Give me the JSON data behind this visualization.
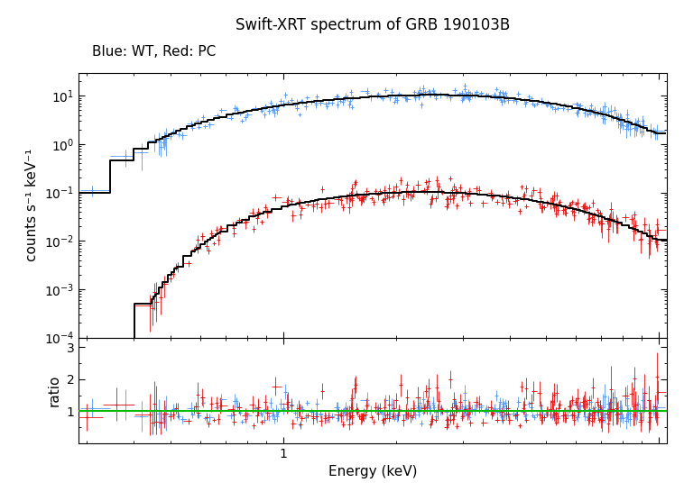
{
  "title": "Swift-XRT spectrum of GRB 190103B",
  "subtitle": "Blue: WT, Red: PC",
  "xlabel": "Energy (keV)",
  "ylabel": "counts s⁻¹ keV⁻¹",
  "ratio_ylabel": "ratio",
  "main_ylim": [
    0.0001,
    30
  ],
  "ratio_ylim": [
    0.0,
    3.3
  ],
  "xlim": [
    0.285,
    10.5
  ],
  "wt_color": "#5599ff",
  "pc_color": "#ee1111",
  "model_color": "#000000",
  "ratio_line_color": "#00bb00",
  "background_color": "#ffffff",
  "wt_seed": 12,
  "pc_seed": 77,
  "title_fontsize": 12,
  "subtitle_fontsize": 11,
  "label_fontsize": 11
}
